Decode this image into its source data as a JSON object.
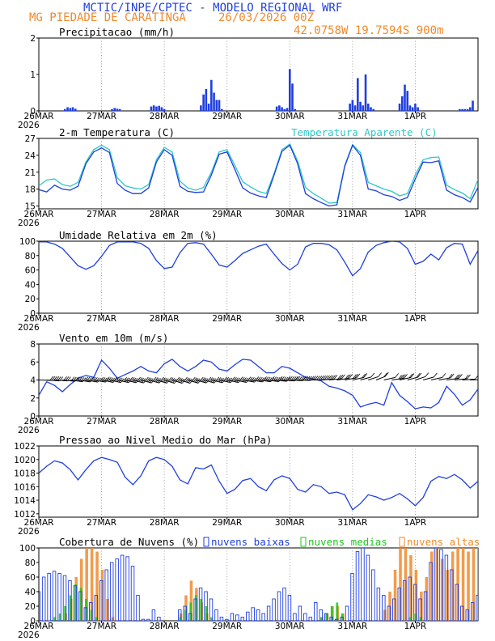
{
  "header": {
    "line1": "MCTIC/INPE/CPTEC - MODELO REGIONAL WRF",
    "location": "MG PIEDADE DE CARATINGA",
    "run": "26/03/2026 00Z",
    "coords": "42.0758W  19.7594S  900m"
  },
  "colors": {
    "blue": "#1f3fe0",
    "cyan": "#2ec8c8",
    "orange": "#f08a2c",
    "green": "#22c422",
    "brown": "#8a5b3a",
    "black": "#000000"
  },
  "x_axis": {
    "day_labels": [
      "26MAR",
      "27MAR",
      "28MAR",
      "29MAR",
      "30MAR",
      "31MAR",
      "1APR"
    ],
    "first_label_year": "2026"
  },
  "chart_data": [
    {
      "type": "bar",
      "title": "Precipitacao (mm/h)",
      "ylim": [
        0,
        2
      ],
      "yticks": [
        0,
        1,
        2
      ],
      "x_hours": [
        10,
        11,
        12,
        13,
        14,
        28,
        29,
        30,
        31,
        43,
        44,
        45,
        46,
        47,
        48,
        62,
        63,
        64,
        65,
        66,
        67,
        68,
        69,
        70,
        91,
        92,
        93,
        94,
        95,
        96,
        97,
        98,
        119,
        120,
        121,
        122,
        123,
        124,
        125,
        126,
        127,
        128,
        138,
        139,
        140,
        141,
        142,
        143,
        144,
        145,
        161,
        162,
        163,
        164,
        165,
        166
      ],
      "values": [
        0.05,
        0.1,
        0.08,
        0.1,
        0.06,
        0.05,
        0.08,
        0.06,
        0.05,
        0.12,
        0.15,
        0.12,
        0.14,
        0.1,
        0.05,
        0.15,
        0.45,
        0.6,
        0.2,
        0.85,
        0.5,
        0.3,
        0.3,
        0.05,
        0.12,
        0.15,
        0.1,
        0.05,
        0.08,
        1.15,
        0.75,
        0.05,
        0.2,
        0.3,
        0.15,
        0.9,
        0.25,
        0.15,
        1.0,
        0.2,
        0.1,
        0.05,
        0.2,
        0.4,
        0.72,
        0.55,
        0.15,
        0.1,
        0.2,
        0.1,
        0.05,
        0.05,
        0.05,
        0.05,
        0.1,
        0.28
      ]
    },
    {
      "type": "line",
      "title": "2-m Temperatura (C)",
      "legend": "Temperatura Aparente (C)",
      "ylim": [
        14.5,
        27
      ],
      "yticks": [
        15,
        18,
        21,
        24,
        27
      ],
      "x_hours": [
        0,
        3,
        6,
        9,
        12,
        15,
        18,
        21,
        24,
        27,
        30,
        33,
        36,
        39,
        42,
        45,
        48,
        51,
        54,
        57,
        60,
        63,
        66,
        69,
        72,
        75,
        78,
        81,
        84,
        87,
        90,
        93,
        96,
        99,
        102,
        105,
        108,
        111,
        114,
        117,
        120,
        123,
        126,
        129,
        132,
        135,
        138,
        141,
        144,
        147,
        150,
        153,
        156,
        159,
        162,
        165,
        168
      ],
      "series": [
        {
          "name": "2-m Temperatura (C)",
          "values": [
            17.9,
            17.5,
            18.7,
            18.0,
            17.8,
            18.5,
            22.5,
            24.6,
            25.3,
            24.5,
            19.0,
            17.8,
            17.2,
            17.2,
            18.2,
            22.8,
            25.0,
            24.0,
            18.5,
            17.6,
            17.4,
            17.5,
            20.5,
            24.2,
            24.6,
            21.5,
            18.2,
            17.3,
            16.8,
            16.5,
            20.5,
            24.7,
            25.8,
            22.5,
            17.2,
            16.3,
            15.6,
            15.0,
            15.2,
            22.0,
            25.8,
            24.0,
            18.0,
            17.7,
            17.0,
            16.7,
            16.0,
            16.5,
            19.8,
            22.8,
            22.7,
            23.0,
            17.8,
            17.0,
            16.5,
            15.7,
            18.3
          ]
        },
        {
          "name": "Temperatura Aparente (C)",
          "values": [
            18.6,
            19.6,
            19.8,
            18.8,
            18.5,
            19.2,
            22.8,
            25.0,
            25.8,
            25.0,
            20.0,
            18.6,
            18.2,
            18.0,
            18.8,
            23.2,
            25.4,
            24.6,
            19.4,
            18.2,
            17.8,
            18.3,
            21.0,
            24.6,
            25.0,
            22.2,
            19.3,
            18.4,
            17.6,
            17.2,
            20.8,
            25.0,
            26.0,
            23.0,
            18.3,
            17.2,
            16.4,
            15.5,
            15.6,
            22.2,
            25.9,
            24.5,
            19.2,
            18.6,
            18.0,
            17.6,
            16.8,
            17.2,
            20.5,
            23.2,
            23.6,
            23.7,
            18.7,
            17.9,
            17.3,
            16.3,
            19.7
          ]
        }
      ]
    },
    {
      "type": "line",
      "title": "Umidade Relativa em 2m (%)",
      "ylim": [
        0,
        100
      ],
      "yticks": [
        0,
        20,
        40,
        60,
        80,
        100
      ],
      "x_hours": [
        0,
        3,
        6,
        9,
        12,
        15,
        18,
        21,
        24,
        27,
        30,
        33,
        36,
        39,
        42,
        45,
        48,
        51,
        54,
        57,
        60,
        63,
        66,
        69,
        72,
        75,
        78,
        81,
        84,
        87,
        90,
        93,
        96,
        99,
        102,
        105,
        108,
        111,
        114,
        117,
        120,
        123,
        126,
        129,
        132,
        135,
        138,
        141,
        144,
        147,
        150,
        153,
        156,
        159,
        162,
        165,
        168
      ],
      "series": [
        {
          "name": "Umidade Relativa",
          "values": [
            99,
            99,
            96,
            90,
            78,
            66,
            61,
            66,
            79,
            94,
            99,
            99,
            99,
            97,
            90,
            73,
            62,
            64,
            84,
            97,
            98,
            96,
            82,
            67,
            64,
            73,
            83,
            88,
            93,
            96,
            82,
            69,
            60,
            68,
            92,
            97,
            97,
            95,
            88,
            71,
            52,
            62,
            85,
            94,
            98,
            100,
            99,
            90,
            68,
            72,
            82,
            74,
            91,
            97,
            96,
            68,
            87
          ]
        }
      ]
    },
    {
      "type": "line",
      "title": "Vento em 10m (m/s)",
      "ylim": [
        0,
        8
      ],
      "yticks": [
        0,
        2,
        4,
        6,
        8
      ],
      "x_hours": [
        0,
        3,
        6,
        9,
        12,
        15,
        18,
        21,
        24,
        27,
        30,
        33,
        36,
        39,
        42,
        45,
        48,
        51,
        54,
        57,
        60,
        63,
        66,
        69,
        72,
        75,
        78,
        81,
        84,
        87,
        90,
        93,
        96,
        99,
        102,
        105,
        108,
        111,
        114,
        117,
        120,
        123,
        126,
        129,
        132,
        135,
        138,
        141,
        144,
        147,
        150,
        153,
        156,
        159,
        162,
        165,
        168
      ],
      "series": [
        {
          "name": "Vento em 10m",
          "values": [
            2.3,
            3.8,
            3.4,
            2.7,
            3.5,
            4.2,
            4.5,
            4.3,
            6.2,
            5.3,
            4.2,
            4.6,
            5.0,
            5.5,
            5.0,
            4.8,
            5.8,
            6.3,
            5.5,
            5.0,
            5.5,
            6.2,
            6.0,
            5.2,
            5.0,
            5.7,
            6.3,
            6.2,
            5.5,
            4.8,
            4.8,
            5.5,
            5.3,
            4.8,
            4.3,
            4.1,
            3.9,
            3.3,
            3.1,
            2.8,
            2.3,
            1.0,
            1.3,
            1.5,
            1.2,
            3.7,
            2.3,
            1.6,
            0.8,
            1.0,
            0.9,
            1.5,
            3.3,
            2.4,
            1.2,
            1.8,
            3.0
          ]
        }
      ],
      "barb_row_value": 4,
      "barb_direction_from_deg": [
        95,
        100,
        100,
        105,
        110,
        112,
        115,
        115,
        118,
        120,
        120,
        122,
        125,
        125,
        125,
        128,
        130,
        130,
        130,
        128,
        125,
        125,
        122,
        120,
        120,
        118,
        115,
        112,
        110,
        108,
        105,
        100,
        98,
        95,
        90,
        85,
        80,
        75,
        70,
        65,
        60,
        55,
        50,
        45,
        60,
        70,
        60,
        55,
        50,
        55,
        60,
        65,
        70,
        75,
        80,
        85,
        90
      ]
    },
    {
      "type": "line",
      "title": "Pressao ao Nivel Medio do Mar (hPa)",
      "ylim": [
        1011.5,
        1022
      ],
      "yticks": [
        1012,
        1014,
        1016,
        1018,
        1020,
        1022
      ],
      "x_hours": [
        0,
        3,
        6,
        9,
        12,
        15,
        18,
        21,
        24,
        27,
        30,
        33,
        36,
        39,
        42,
        45,
        48,
        51,
        54,
        57,
        60,
        63,
        66,
        69,
        72,
        75,
        78,
        81,
        84,
        87,
        90,
        93,
        96,
        99,
        102,
        105,
        108,
        111,
        114,
        117,
        120,
        123,
        126,
        129,
        132,
        135,
        138,
        141,
        144,
        147,
        150,
        153,
        156,
        159,
        162,
        165,
        168
      ],
      "series": [
        {
          "name": "PNMM",
          "values": [
            1018.0,
            1019.0,
            1019.8,
            1019.5,
            1018.5,
            1017.0,
            1018.5,
            1019.8,
            1020.3,
            1020.0,
            1019.6,
            1017.4,
            1016.3,
            1017.6,
            1019.8,
            1020.3,
            1020.0,
            1019.0,
            1017.0,
            1016.4,
            1018.8,
            1018.6,
            1019.2,
            1016.8,
            1015.0,
            1015.6,
            1016.9,
            1017.2,
            1016.0,
            1015.4,
            1017.0,
            1017.6,
            1017.2,
            1015.6,
            1015.2,
            1016.3,
            1016.0,
            1015.0,
            1015.2,
            1014.8,
            1012.6,
            1013.5,
            1014.8,
            1014.5,
            1014.0,
            1014.4,
            1015.0,
            1014.2,
            1013.2,
            1014.4,
            1016.8,
            1017.5,
            1017.2,
            1017.8,
            1017.0,
            1015.8,
            1016.8
          ]
        }
      ]
    },
    {
      "type": "bar",
      "title": "Cobertura de Nuvens (%)",
      "ylim": [
        0,
        100
      ],
      "yticks": [
        0,
        20,
        40,
        60,
        80,
        100
      ],
      "legend": [
        "nuvens baixas",
        "nuvens medias",
        "nuvens altas"
      ],
      "x_hours": [
        0,
        2,
        4,
        6,
        8,
        10,
        12,
        14,
        16,
        18,
        20,
        22,
        24,
        26,
        28,
        30,
        32,
        34,
        36,
        38,
        40,
        42,
        44,
        46,
        48,
        50,
        52,
        54,
        56,
        58,
        60,
        62,
        64,
        66,
        68,
        70,
        72,
        74,
        76,
        78,
        80,
        82,
        84,
        86,
        88,
        90,
        92,
        94,
        96,
        98,
        100,
        102,
        104,
        106,
        108,
        110,
        112,
        114,
        116,
        118,
        120,
        122,
        124,
        126,
        128,
        130,
        132,
        134,
        136,
        138,
        140,
        142,
        144,
        146,
        148,
        150,
        152,
        154,
        156,
        158,
        160,
        162,
        164,
        166,
        168
      ],
      "series": [
        {
          "name": "nuvens baixas",
          "values": [
            40,
            60,
            65,
            68,
            65,
            62,
            55,
            48,
            40,
            18,
            25,
            35,
            55,
            70,
            80,
            85,
            90,
            88,
            75,
            35,
            2,
            2,
            15,
            5,
            0,
            0,
            0,
            15,
            20,
            10,
            30,
            45,
            40,
            30,
            15,
            5,
            2,
            10,
            8,
            5,
            12,
            18,
            15,
            10,
            20,
            30,
            40,
            45,
            35,
            10,
            20,
            10,
            5,
            25,
            15,
            10,
            5,
            2,
            5,
            20,
            65,
            95,
            100,
            90,
            70,
            45,
            35,
            20,
            30,
            45,
            55,
            60,
            50,
            30,
            40,
            80,
            100,
            98,
            90,
            70,
            50,
            20,
            15,
            25,
            35
          ]
        },
        {
          "name": "nuvens medias",
          "values": [
            0,
            0,
            0,
            5,
            10,
            20,
            35,
            50,
            45,
            30,
            15,
            5,
            0,
            0,
            0,
            0,
            0,
            0,
            0,
            0,
            0,
            0,
            0,
            0,
            0,
            0,
            0,
            5,
            15,
            25,
            35,
            30,
            20,
            5,
            0,
            0,
            0,
            0,
            0,
            0,
            0,
            0,
            0,
            0,
            0,
            0,
            0,
            0,
            0,
            0,
            0,
            0,
            0,
            0,
            5,
            10,
            20,
            25,
            10,
            0,
            0,
            0,
            0,
            0,
            0,
            0,
            0,
            0,
            0,
            0,
            0,
            5,
            10,
            5,
            0,
            0,
            0,
            0,
            0,
            0,
            0,
            0,
            0,
            0,
            0
          ]
        },
        {
          "name": "nuvens altas",
          "values": [
            0,
            0,
            0,
            0,
            0,
            10,
            30,
            60,
            85,
            100,
            100,
            95,
            70,
            30,
            5,
            0,
            0,
            0,
            0,
            0,
            0,
            0,
            0,
            0,
            0,
            0,
            0,
            10,
            35,
            55,
            45,
            25,
            10,
            0,
            0,
            0,
            0,
            0,
            0,
            0,
            0,
            0,
            0,
            0,
            0,
            0,
            0,
            0,
            0,
            0,
            0,
            0,
            0,
            0,
            5,
            10,
            20,
            20,
            10,
            0,
            0,
            0,
            0,
            0,
            0,
            0,
            15,
            40,
            70,
            100,
            100,
            90,
            70,
            40,
            60,
            95,
            100,
            85,
            70,
            95,
            100,
            100,
            95,
            100,
            100
          ]
        }
      ]
    }
  ]
}
